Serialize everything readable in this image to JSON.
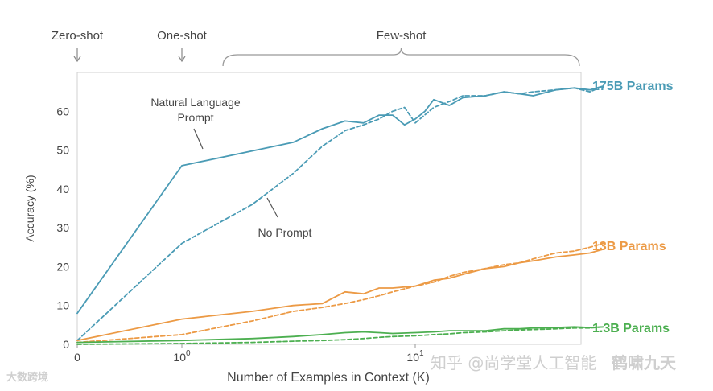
{
  "chart_data": {
    "type": "line",
    "xlabel": "Number of Examples in Context  (K)",
    "ylabel": "Accuracy (%)",
    "ylim": [
      0,
      70
    ],
    "y_ticks": [
      "0",
      "10",
      "20",
      "30",
      "40",
      "50",
      "60"
    ],
    "y_tick_values": [
      0,
      10,
      20,
      30,
      40,
      50,
      60
    ],
    "x_ticks": [
      {
        "value": 0,
        "base": "0",
        "exp": ""
      },
      {
        "value": 1,
        "base": "10",
        "exp": "0"
      },
      {
        "value": 10,
        "base": "10",
        "exp": "1"
      }
    ],
    "x_max": 64,
    "x_scale": "symlog",
    "regions": [
      {
        "label": "Zero-shot",
        "x": 0
      },
      {
        "label": "One-shot",
        "x": 1
      },
      {
        "label": "Few-shot",
        "x_range": [
          1.5,
          64
        ]
      }
    ],
    "annotations": [
      {
        "text_lines": [
          "Natural Language",
          "Prompt"
        ]
      },
      {
        "text_lines": [
          "No Prompt"
        ]
      }
    ],
    "series": [
      {
        "name": "175B Params",
        "color": "#4a9bb5",
        "style": "solid",
        "x": [
          0,
          1,
          3,
          4,
          5,
          6,
          7,
          8,
          9,
          10,
          11,
          12,
          14,
          16,
          20,
          24,
          28,
          32,
          40,
          48,
          56,
          64
        ],
        "y": [
          8,
          46,
          52,
          55.5,
          57.5,
          57,
          59,
          59,
          56.5,
          58,
          60,
          63,
          61.5,
          63.5,
          64,
          65,
          64.5,
          64,
          65.5,
          66,
          65.5,
          66.5
        ]
      },
      {
        "name": "175B Params",
        "color": "#4a9bb5",
        "style": "dashed",
        "x": [
          0,
          1,
          2,
          3,
          4,
          5,
          6,
          7,
          8,
          9,
          10,
          12,
          14,
          16,
          20,
          24,
          28,
          32,
          40,
          48,
          56,
          64
        ],
        "y": [
          1,
          26,
          36,
          44,
          51,
          55,
          56.5,
          58,
          60,
          61,
          57,
          61,
          62.5,
          64,
          64,
          65,
          64.5,
          65,
          65.5,
          66,
          65,
          66.5
        ]
      },
      {
        "name": "13B Params",
        "color": "#ec9a45",
        "style": "solid",
        "x": [
          0,
          1,
          2,
          3,
          4,
          5,
          6,
          7,
          8,
          10,
          12,
          14,
          16,
          20,
          24,
          28,
          32,
          40,
          48,
          56,
          64
        ],
        "y": [
          1,
          6.5,
          8.5,
          10,
          10.5,
          13.5,
          13,
          14.5,
          14.5,
          15,
          16.5,
          17,
          18,
          19.5,
          20,
          21,
          21.5,
          22.5,
          23,
          23.5,
          24.5
        ]
      },
      {
        "name": "13B Params",
        "color": "#ec9a45",
        "style": "dashed",
        "x": [
          0,
          1,
          2,
          3,
          4,
          5,
          6,
          7,
          8,
          10,
          12,
          14,
          16,
          20,
          24,
          28,
          32,
          40,
          48,
          56,
          64
        ],
        "y": [
          0.5,
          2.5,
          6,
          8.5,
          9.5,
          10.5,
          11.5,
          12.5,
          13.5,
          15,
          16,
          17.5,
          18.5,
          19.5,
          20.5,
          21,
          22,
          23.5,
          24,
          25,
          26
        ]
      },
      {
        "name": "1.3B Params",
        "color": "#4caf50",
        "style": "solid",
        "x": [
          0,
          1,
          2,
          3,
          4,
          5,
          6,
          7,
          8,
          10,
          12,
          14,
          16,
          20,
          24,
          28,
          32,
          40,
          48,
          56,
          64
        ],
        "y": [
          0.5,
          1,
          1.5,
          2,
          2.5,
          3,
          3.2,
          3,
          2.8,
          3,
          3.2,
          3.5,
          3.5,
          3.5,
          4,
          4,
          4.2,
          4.3,
          4.5,
          4.3,
          4.5
        ]
      },
      {
        "name": "1.3B Params",
        "color": "#4caf50",
        "style": "dashed",
        "x": [
          0,
          1,
          2,
          3,
          4,
          5,
          6,
          7,
          8,
          10,
          12,
          14,
          16,
          20,
          24,
          28,
          32,
          40,
          48,
          56,
          64
        ],
        "y": [
          0,
          0.2,
          0.5,
          0.8,
          1,
          1.2,
          1.5,
          1.8,
          2,
          2.2,
          2.5,
          2.7,
          3,
          3.2,
          3.5,
          3.7,
          3.8,
          4,
          4.2,
          4.2,
          4.5
        ]
      }
    ],
    "series_labels": [
      {
        "text": "175B Params",
        "color": "#4a9bb5",
        "y": 66
      },
      {
        "text": "13B Params",
        "color": "#ec9a45",
        "y": 25
      },
      {
        "text": "1.3B Params",
        "color": "#4caf50",
        "y": 4.5
      }
    ]
  },
  "watermarks": {
    "bottom_left": "大数跨境",
    "bottom_right": "知乎 @尚学堂人工智能",
    "bottom_right_2": "鹤啸九天"
  }
}
